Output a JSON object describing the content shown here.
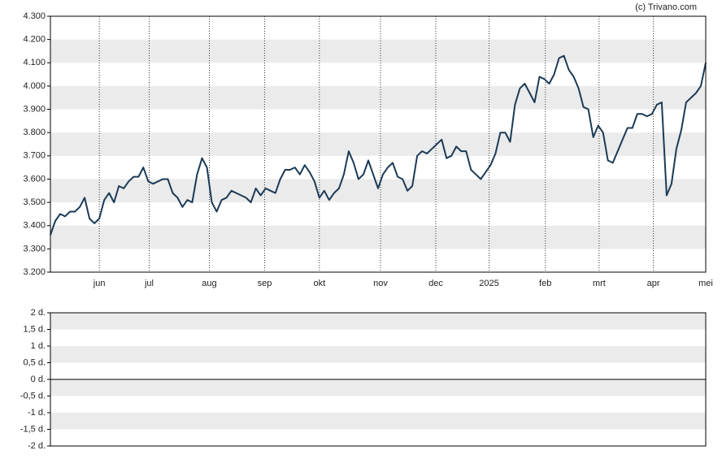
{
  "source": "(c) Trivano.com",
  "chart_data": [
    {
      "type": "line",
      "color": "#1b3a57",
      "grid": true,
      "values": [
        3360,
        3420,
        3450,
        3440,
        3460,
        3460,
        3480,
        3520,
        3430,
        3410,
        3430,
        3510,
        3540,
        3500,
        3570,
        3560,
        3590,
        3610,
        3610,
        3650,
        3590,
        3580,
        3590,
        3600,
        3600,
        3540,
        3520,
        3480,
        3510,
        3500,
        3620,
        3690,
        3650,
        3500,
        3460,
        3510,
        3520,
        3550,
        3540,
        3530,
        3520,
        3500,
        3560,
        3530,
        3560,
        3550,
        3540,
        3600,
        3640,
        3640,
        3650,
        3620,
        3660,
        3630,
        3590,
        3520,
        3550,
        3510,
        3540,
        3560,
        3620,
        3720,
        3670,
        3600,
        3620,
        3680,
        3620,
        3560,
        3620,
        3650,
        3670,
        3610,
        3600,
        3550,
        3570,
        3700,
        3720,
        3710,
        3730,
        3750,
        3770,
        3690,
        3700,
        3740,
        3720,
        3720,
        3640,
        3620,
        3600,
        3630,
        3660,
        3710,
        3800,
        3800,
        3760,
        3920,
        3990,
        4010,
        3970,
        3930,
        4040,
        4030,
        4010,
        4050,
        4120,
        4130,
        4070,
        4040,
        3990,
        3910,
        3900,
        3780,
        3830,
        3800,
        3680,
        3670,
        3720,
        3770,
        3820,
        3820,
        3880,
        3880,
        3870,
        3880,
        3920,
        3930,
        3530,
        3580,
        3730,
        3810,
        3930,
        3950,
        3970,
        4000,
        4100
      ],
      "xlim": [
        0,
        134
      ],
      "xticks": [
        {
          "value": 10,
          "label": "jun"
        },
        {
          "value": 20.2,
          "label": "jul"
        },
        {
          "value": 32.5,
          "label": "aug"
        },
        {
          "value": 43.8,
          "label": "sep"
        },
        {
          "value": 55,
          "label": "okt"
        },
        {
          "value": 67.5,
          "label": "nov"
        },
        {
          "value": 78.8,
          "label": "dec"
        },
        {
          "value": 89.7,
          "label": "2025"
        },
        {
          "value": 101.2,
          "label": "feb"
        },
        {
          "value": 112.2,
          "label": "mrt"
        },
        {
          "value": 123.3,
          "label": "apr"
        },
        {
          "value": 134,
          "label": "mei"
        }
      ],
      "ylim": [
        3200,
        4300
      ],
      "yticks": [
        {
          "value": 3200,
          "label": "3.200"
        },
        {
          "value": 3300,
          "label": "3.300"
        },
        {
          "value": 3400,
          "label": "3.400"
        },
        {
          "value": 3500,
          "label": "3.500"
        },
        {
          "value": 3600,
          "label": "3.600"
        },
        {
          "value": 3700,
          "label": "3.700"
        },
        {
          "value": 3800,
          "label": "3.800"
        },
        {
          "value": 3900,
          "label": "3.900"
        },
        {
          "value": 4000,
          "label": "4.000"
        },
        {
          "value": 4100,
          "label": "4.100"
        },
        {
          "value": 4200,
          "label": "4.200"
        },
        {
          "value": 4300,
          "label": "4.300"
        }
      ]
    },
    {
      "type": "line",
      "grid": true,
      "ylim": [
        -2,
        2
      ],
      "yticks": [
        {
          "value": -2,
          "label": "-2 d."
        },
        {
          "value": -1.5,
          "label": "-1,5 d."
        },
        {
          "value": -1,
          "label": "-1 d."
        },
        {
          "value": -0.5,
          "label": "-0,5 d."
        },
        {
          "value": 0,
          "label": "0 d."
        },
        {
          "value": 0.5,
          "label": "0,5 d."
        },
        {
          "value": 1,
          "label": "1 d."
        },
        {
          "value": 1.5,
          "label": "1,5 d."
        },
        {
          "value": 2,
          "label": "2 d."
        }
      ]
    }
  ]
}
